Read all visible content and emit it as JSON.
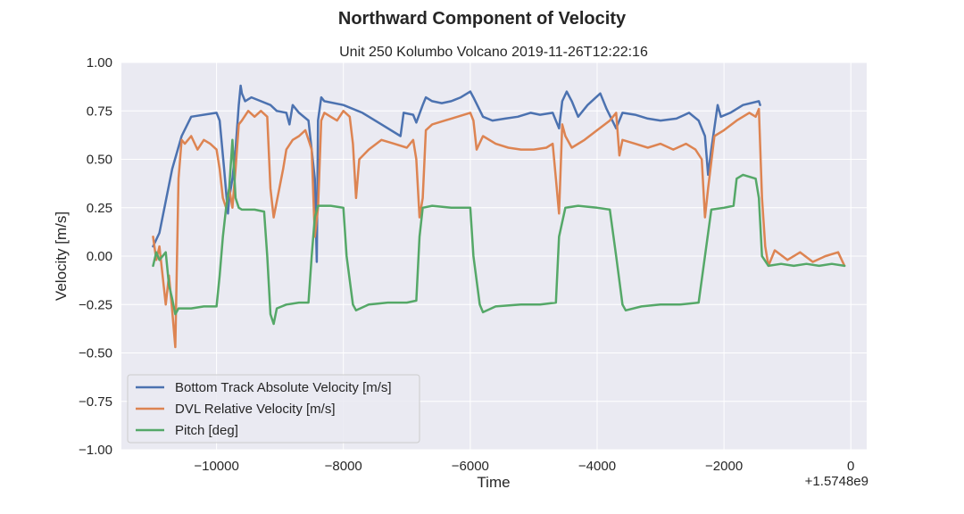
{
  "chart_data": {
    "type": "line",
    "suptitle": "Northward Component of Velocity",
    "title": "Unit 250 Kolumbo Volcano 2019-11-26T12:22:16",
    "xlabel": "Time",
    "ylabel": "Velocity [m/s]",
    "x_offset_label": "+1.5748e9",
    "xlim": [
      -11500,
      250
    ],
    "ylim": [
      -1.0,
      1.0
    ],
    "x_ticks": [
      -10000,
      -8000,
      -6000,
      -4000,
      -2000,
      0
    ],
    "x_tick_labels": [
      "−10000",
      "−8000",
      "−6000",
      "−4000",
      "−2000",
      "0"
    ],
    "y_ticks": [
      -1.0,
      -0.75,
      -0.5,
      -0.25,
      0.0,
      0.25,
      0.5,
      0.75,
      1.0
    ],
    "y_tick_labels": [
      "−1.00",
      "−0.75",
      "−0.50",
      "−0.25",
      "0.00",
      "0.25",
      "0.50",
      "0.75",
      "1.00"
    ],
    "grid": true,
    "background": "#eaeaf2",
    "legend_position": "lower-left",
    "series": [
      {
        "name": "Bottom Track Absolute Velocity [m/s]",
        "color": "#4c72b0",
        "points": [
          [
            -11000,
            0.05
          ],
          [
            -10900,
            0.12
          ],
          [
            -10700,
            0.45
          ],
          [
            -10550,
            0.62
          ],
          [
            -10400,
            0.72
          ],
          [
            -10000,
            0.74
          ],
          [
            -9950,
            0.7
          ],
          [
            -9880,
            0.45
          ],
          [
            -9820,
            0.22
          ],
          [
            -9800,
            0.3
          ],
          [
            -9750,
            0.4
          ],
          [
            -9700,
            0.55
          ],
          [
            -9650,
            0.78
          ],
          [
            -9620,
            0.88
          ],
          [
            -9600,
            0.84
          ],
          [
            -9550,
            0.8
          ],
          [
            -9450,
            0.82
          ],
          [
            -9300,
            0.8
          ],
          [
            -9150,
            0.78
          ],
          [
            -9050,
            0.75
          ],
          [
            -8900,
            0.74
          ],
          [
            -8850,
            0.68
          ],
          [
            -8800,
            0.78
          ],
          [
            -8700,
            0.74
          ],
          [
            -8550,
            0.7
          ],
          [
            -8450,
            0.4
          ],
          [
            -8420,
            -0.03
          ],
          [
            -8400,
            0.7
          ],
          [
            -8350,
            0.82
          ],
          [
            -8300,
            0.8
          ],
          [
            -8000,
            0.78
          ],
          [
            -7700,
            0.74
          ],
          [
            -7400,
            0.68
          ],
          [
            -7100,
            0.62
          ],
          [
            -7050,
            0.74
          ],
          [
            -6900,
            0.73
          ],
          [
            -6850,
            0.69
          ],
          [
            -6750,
            0.78
          ],
          [
            -6700,
            0.82
          ],
          [
            -6600,
            0.8
          ],
          [
            -6450,
            0.79
          ],
          [
            -6300,
            0.8
          ],
          [
            -6150,
            0.82
          ],
          [
            -6000,
            0.85
          ],
          [
            -5950,
            0.82
          ],
          [
            -5800,
            0.72
          ],
          [
            -5650,
            0.7
          ],
          [
            -5450,
            0.71
          ],
          [
            -5250,
            0.72
          ],
          [
            -5050,
            0.74
          ],
          [
            -4900,
            0.73
          ],
          [
            -4700,
            0.74
          ],
          [
            -4600,
            0.66
          ],
          [
            -4550,
            0.8
          ],
          [
            -4480,
            0.85
          ],
          [
            -4400,
            0.8
          ],
          [
            -4300,
            0.72
          ],
          [
            -4150,
            0.78
          ],
          [
            -3950,
            0.84
          ],
          [
            -3850,
            0.76
          ],
          [
            -3700,
            0.66
          ],
          [
            -3600,
            0.74
          ],
          [
            -3400,
            0.73
          ],
          [
            -3200,
            0.71
          ],
          [
            -3000,
            0.7
          ],
          [
            -2750,
            0.71
          ],
          [
            -2550,
            0.74
          ],
          [
            -2400,
            0.7
          ],
          [
            -2300,
            0.62
          ],
          [
            -2250,
            0.42
          ],
          [
            -2200,
            0.55
          ],
          [
            -2100,
            0.78
          ],
          [
            -2050,
            0.72
          ],
          [
            -1900,
            0.74
          ],
          [
            -1700,
            0.78
          ],
          [
            -1450,
            0.8
          ],
          [
            -1430,
            0.78
          ]
        ]
      },
      {
        "name": "DVL Relative Velocity [m/s]",
        "color": "#dd8452",
        "points": [
          [
            -11000,
            0.1
          ],
          [
            -10950,
            -0.02
          ],
          [
            -10900,
            0.05
          ],
          [
            -10800,
            -0.25
          ],
          [
            -10750,
            -0.1
          ],
          [
            -10700,
            -0.28
          ],
          [
            -10650,
            -0.47
          ],
          [
            -10600,
            0.4
          ],
          [
            -10550,
            0.6
          ],
          [
            -10500,
            0.58
          ],
          [
            -10400,
            0.62
          ],
          [
            -10300,
            0.55
          ],
          [
            -10200,
            0.6
          ],
          [
            -10100,
            0.58
          ],
          [
            -10000,
            0.55
          ],
          [
            -9950,
            0.45
          ],
          [
            -9900,
            0.3
          ],
          [
            -9850,
            0.25
          ],
          [
            -9800,
            0.35
          ],
          [
            -9750,
            0.25
          ],
          [
            -9700,
            0.45
          ],
          [
            -9650,
            0.68
          ],
          [
            -9600,
            0.7
          ],
          [
            -9500,
            0.75
          ],
          [
            -9400,
            0.72
          ],
          [
            -9300,
            0.75
          ],
          [
            -9200,
            0.72
          ],
          [
            -9150,
            0.35
          ],
          [
            -9100,
            0.2
          ],
          [
            -8950,
            0.45
          ],
          [
            -8900,
            0.55
          ],
          [
            -8800,
            0.6
          ],
          [
            -8700,
            0.62
          ],
          [
            -8600,
            0.65
          ],
          [
            -8500,
            0.55
          ],
          [
            -8450,
            0.1
          ],
          [
            -8400,
            0.25
          ],
          [
            -8350,
            0.7
          ],
          [
            -8300,
            0.74
          ],
          [
            -8200,
            0.72
          ],
          [
            -8100,
            0.7
          ],
          [
            -8000,
            0.75
          ],
          [
            -7900,
            0.72
          ],
          [
            -7850,
            0.58
          ],
          [
            -7800,
            0.3
          ],
          [
            -7750,
            0.5
          ],
          [
            -7600,
            0.55
          ],
          [
            -7400,
            0.6
          ],
          [
            -7200,
            0.58
          ],
          [
            -7000,
            0.56
          ],
          [
            -6900,
            0.6
          ],
          [
            -6850,
            0.5
          ],
          [
            -6800,
            0.2
          ],
          [
            -6750,
            0.3
          ],
          [
            -6700,
            0.65
          ],
          [
            -6600,
            0.68
          ],
          [
            -6400,
            0.7
          ],
          [
            -6200,
            0.72
          ],
          [
            -6000,
            0.74
          ],
          [
            -5950,
            0.7
          ],
          [
            -5900,
            0.55
          ],
          [
            -5800,
            0.62
          ],
          [
            -5600,
            0.58
          ],
          [
            -5400,
            0.56
          ],
          [
            -5200,
            0.55
          ],
          [
            -5000,
            0.55
          ],
          [
            -4800,
            0.56
          ],
          [
            -4700,
            0.58
          ],
          [
            -4650,
            0.4
          ],
          [
            -4600,
            0.22
          ],
          [
            -4550,
            0.68
          ],
          [
            -4500,
            0.62
          ],
          [
            -4400,
            0.56
          ],
          [
            -4200,
            0.6
          ],
          [
            -4000,
            0.65
          ],
          [
            -3800,
            0.7
          ],
          [
            -3700,
            0.74
          ],
          [
            -3650,
            0.52
          ],
          [
            -3600,
            0.6
          ],
          [
            -3400,
            0.58
          ],
          [
            -3200,
            0.56
          ],
          [
            -3000,
            0.58
          ],
          [
            -2800,
            0.55
          ],
          [
            -2600,
            0.58
          ],
          [
            -2450,
            0.55
          ],
          [
            -2350,
            0.5
          ],
          [
            -2300,
            0.2
          ],
          [
            -2250,
            0.35
          ],
          [
            -2150,
            0.62
          ],
          [
            -2000,
            0.65
          ],
          [
            -1800,
            0.7
          ],
          [
            -1600,
            0.74
          ],
          [
            -1500,
            0.72
          ],
          [
            -1450,
            0.76
          ],
          [
            -1400,
            0.3
          ],
          [
            -1350,
            0.05
          ],
          [
            -1300,
            -0.05
          ],
          [
            -1200,
            0.03
          ],
          [
            -1000,
            -0.02
          ],
          [
            -800,
            0.02
          ],
          [
            -600,
            -0.03
          ],
          [
            -400,
            0.0
          ],
          [
            -200,
            0.02
          ],
          [
            -100,
            -0.05
          ]
        ]
      },
      {
        "name": "Pitch [deg]",
        "color": "#55a868",
        "points": [
          [
            -11000,
            -0.05
          ],
          [
            -10950,
            0.02
          ],
          [
            -10900,
            -0.02
          ],
          [
            -10800,
            0.02
          ],
          [
            -10750,
            -0.15
          ],
          [
            -10700,
            -0.22
          ],
          [
            -10650,
            -0.3
          ],
          [
            -10600,
            -0.27
          ],
          [
            -10400,
            -0.27
          ],
          [
            -10200,
            -0.26
          ],
          [
            -10000,
            -0.26
          ],
          [
            -9950,
            -0.1
          ],
          [
            -9900,
            0.1
          ],
          [
            -9850,
            0.25
          ],
          [
            -9800,
            0.35
          ],
          [
            -9750,
            0.6
          ],
          [
            -9700,
            0.3
          ],
          [
            -9650,
            0.25
          ],
          [
            -9600,
            0.24
          ],
          [
            -9400,
            0.24
          ],
          [
            -9250,
            0.23
          ],
          [
            -9200,
            0.0
          ],
          [
            -9150,
            -0.3
          ],
          [
            -9100,
            -0.35
          ],
          [
            -9050,
            -0.27
          ],
          [
            -8900,
            -0.25
          ],
          [
            -8700,
            -0.24
          ],
          [
            -8550,
            -0.24
          ],
          [
            -8500,
            0.0
          ],
          [
            -8450,
            0.2
          ],
          [
            -8400,
            0.26
          ],
          [
            -8200,
            0.26
          ],
          [
            -8000,
            0.25
          ],
          [
            -7950,
            0.0
          ],
          [
            -7850,
            -0.25
          ],
          [
            -7800,
            -0.28
          ],
          [
            -7600,
            -0.25
          ],
          [
            -7300,
            -0.24
          ],
          [
            -7000,
            -0.24
          ],
          [
            -6850,
            -0.23
          ],
          [
            -6800,
            0.1
          ],
          [
            -6750,
            0.25
          ],
          [
            -6600,
            0.26
          ],
          [
            -6300,
            0.25
          ],
          [
            -6000,
            0.25
          ],
          [
            -5950,
            0.0
          ],
          [
            -5850,
            -0.25
          ],
          [
            -5800,
            -0.29
          ],
          [
            -5600,
            -0.26
          ],
          [
            -5200,
            -0.25
          ],
          [
            -4900,
            -0.25
          ],
          [
            -4650,
            -0.24
          ],
          [
            -4600,
            0.1
          ],
          [
            -4500,
            0.25
          ],
          [
            -4300,
            0.26
          ],
          [
            -4000,
            0.25
          ],
          [
            -3800,
            0.24
          ],
          [
            -3700,
            0.0
          ],
          [
            -3600,
            -0.25
          ],
          [
            -3550,
            -0.28
          ],
          [
            -3300,
            -0.26
          ],
          [
            -3000,
            -0.25
          ],
          [
            -2700,
            -0.25
          ],
          [
            -2400,
            -0.24
          ],
          [
            -2300,
            0.0
          ],
          [
            -2200,
            0.24
          ],
          [
            -2000,
            0.25
          ],
          [
            -1850,
            0.26
          ],
          [
            -1800,
            0.4
          ],
          [
            -1700,
            0.42
          ],
          [
            -1500,
            0.4
          ],
          [
            -1450,
            0.3
          ],
          [
            -1400,
            0.0
          ],
          [
            -1300,
            -0.05
          ],
          [
            -1100,
            -0.04
          ],
          [
            -900,
            -0.05
          ],
          [
            -700,
            -0.04
          ],
          [
            -500,
            -0.05
          ],
          [
            -300,
            -0.04
          ],
          [
            -100,
            -0.05
          ]
        ]
      }
    ]
  }
}
